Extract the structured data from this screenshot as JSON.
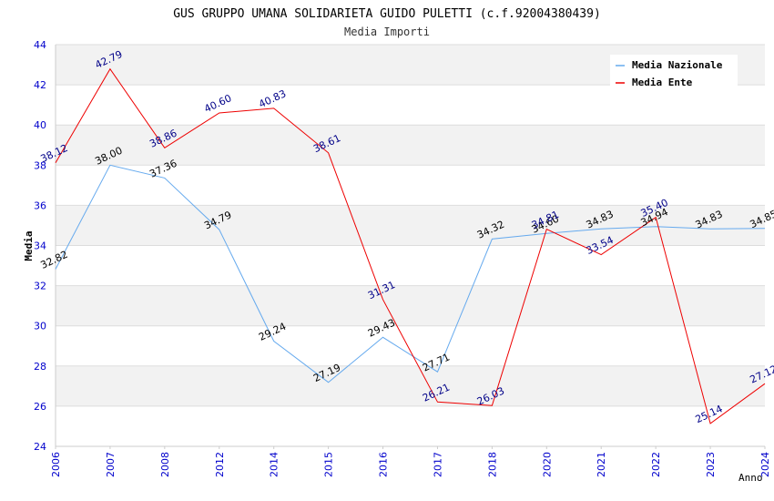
{
  "chart_data": {
    "type": "line",
    "title": "GUS GRUPPO UMANA SOLIDARIETA GUIDO PULETTI (c.f.92004380439)",
    "subtitle": "Media Importi",
    "ylabel": "Media",
    "xlabel": "Anno",
    "ylim": [
      24,
      44
    ],
    "yticks": [
      "24",
      "26",
      "28",
      "30",
      "32",
      "34",
      "36",
      "38",
      "40",
      "42",
      "44"
    ],
    "categories": [
      "2006",
      "2007",
      "2008",
      "2012",
      "2014",
      "2015",
      "2016",
      "2017",
      "2018",
      "2020",
      "2021",
      "2022",
      "2023",
      "2024"
    ],
    "grid": true,
    "legend_position": "top-right",
    "series": [
      {
        "name": "Media Nazionale",
        "color": "#66aaee",
        "label_color": "#000000",
        "values": [
          32.82,
          38.0,
          37.36,
          34.79,
          29.24,
          27.19,
          29.43,
          27.71,
          34.32,
          34.6,
          34.83,
          34.94,
          34.83,
          34.85
        ],
        "labels": [
          "32.82",
          "38.00",
          "37.36",
          "34.79",
          "29.24",
          "27.19",
          "29.43",
          "27.71",
          "34.32",
          "34.60",
          "34.83",
          "34.94",
          "34.83",
          "34.85"
        ]
      },
      {
        "name": "Media Ente",
        "color": "#ee0000",
        "label_color": "#000088",
        "values": [
          38.12,
          42.79,
          38.86,
          40.6,
          40.83,
          38.61,
          31.31,
          26.21,
          26.03,
          34.81,
          33.54,
          35.4,
          25.14,
          27.12
        ],
        "labels": [
          "38.12",
          "42.79",
          "38.86",
          "40.60",
          "40.83",
          "38.61",
          "31.31",
          "26.21",
          "26.03",
          "34.81",
          "33.54",
          "35.40",
          "25.14",
          "27.12"
        ]
      }
    ]
  }
}
